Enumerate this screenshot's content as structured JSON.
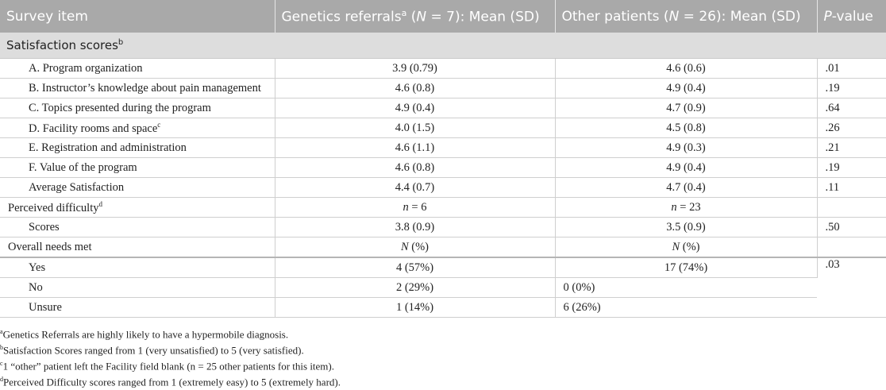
{
  "header": {
    "col1": "Survey item",
    "col2_pre": "Genetics referrals",
    "col2_sup": "a",
    "col2_n": "(N = 7): Mean (SD)",
    "col3": "Other patients (N = 26): Mean (SD)",
    "col4": "P-value"
  },
  "section": {
    "label": "Satisfaction scores",
    "sup": "b"
  },
  "rows": {
    "a": {
      "item": "A. Program organization",
      "g": "3.9 (0.79)",
      "o": "4.6 (0.6)",
      "p": ".01"
    },
    "b": {
      "item": "B. Instructor’s knowledge about pain management",
      "g": "4.6 (0.8)",
      "o": "4.9 (0.4)",
      "p": ".19"
    },
    "c": {
      "item": "C. Topics presented during the program",
      "g": "4.9 (0.4)",
      "o": "4.7 (0.9)",
      "p": ".64"
    },
    "d": {
      "item": "D. Facility rooms and space",
      "sup": "c",
      "g": "4.0 (1.5)",
      "o": "4.5 (0.8)",
      "p": ".26"
    },
    "e": {
      "item": "E. Registration and administration",
      "g": "4.6 (1.1)",
      "o": "4.9 (0.3)",
      "p": ".21"
    },
    "f": {
      "item": "F. Value of the program",
      "g": "4.6 (0.8)",
      "o": "4.9 (0.4)",
      "p": ".19"
    },
    "avg": {
      "item": "Average Satisfaction",
      "g": "4.4 (0.7)",
      "o": "4.7 (0.4)",
      "p": ".11"
    },
    "pd": {
      "item": "Perceived difficulty",
      "sup": "d",
      "g": "n = 6",
      "o": "n = 23",
      "p": ""
    },
    "scores": {
      "item": "Scores",
      "g": "3.8 (0.9)",
      "o": "3.5 (0.9)",
      "p": ".50"
    },
    "needs": {
      "item": "Overall needs met",
      "g": "N (%)",
      "o": "N (%)",
      "p": ""
    },
    "yes": {
      "item": "Yes",
      "g": "4 (57%)",
      "o": "17 (74%)",
      "p": ".03"
    },
    "no": {
      "item": "No",
      "g": "2 (29%)",
      "o": "0 (0%)"
    },
    "unsure": {
      "item": "Unsure",
      "g": "1 (14%)",
      "o": "6 (26%)"
    }
  },
  "notes": {
    "a": {
      "sup": "a",
      "text": "Genetics Referrals are highly likely to have a hypermobile diagnosis."
    },
    "b": {
      "sup": "b",
      "text": "Satisfaction Scores ranged from 1 (very unsatisfied) to 5 (very satisfied)."
    },
    "c": {
      "sup": "c",
      "text": "1 “other” patient left the Facility field blank (n = 25 other patients for this item)."
    },
    "d": {
      "sup": "d",
      "text": "Perceived Difficulty scores ranged from 1 (extremely easy) to 5 (extremely hard)."
    }
  },
  "colors": {
    "header_bg": "#a9a9a9",
    "section_bg": "#dddddd",
    "header_text": "#ffffff"
  }
}
